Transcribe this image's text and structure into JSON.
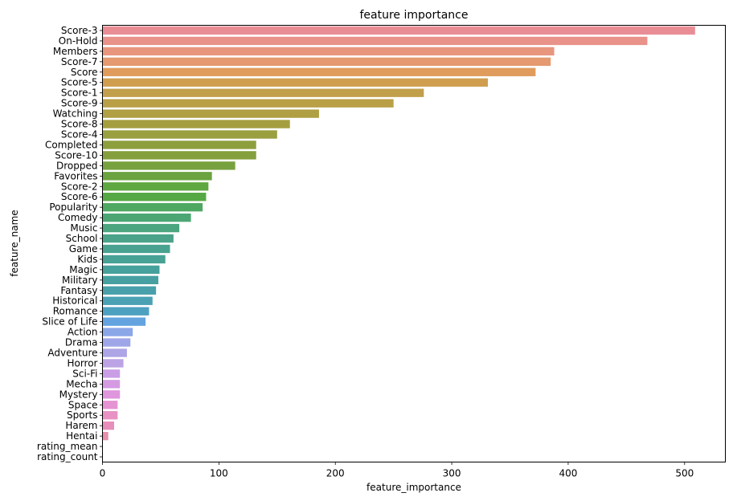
{
  "chart_data": {
    "type": "bar",
    "orientation": "horizontal",
    "title": "feature importance",
    "xlabel": "feature_importance",
    "ylabel": "feature_name",
    "xlim": [
      0,
      535
    ],
    "xticks": [
      0,
      100,
      200,
      300,
      400,
      500
    ],
    "grid": false,
    "categories": [
      "Score-3",
      "On-Hold",
      "Members",
      "Score-7",
      "Score",
      "Score-5",
      "Score-1",
      "Score-9",
      "Watching",
      "Score-8",
      "Score-4",
      "Completed",
      "Score-10",
      "Dropped",
      "Favorites",
      "Score-2",
      "Score-6",
      "Popularity",
      "Comedy",
      "Music",
      "School",
      "Game",
      "Kids",
      "Magic",
      "Military",
      "Fantasy",
      "Historical",
      "Romance",
      "Slice of Life",
      "Action",
      "Drama",
      "Adventure",
      "Horror",
      "Sci-Fi",
      "Mecha",
      "Mystery",
      "Space",
      "Sports",
      "Harem",
      "Hentai",
      "rating_mean",
      "rating_count"
    ],
    "values": [
      509,
      468,
      388,
      385,
      372,
      331,
      276,
      250,
      186,
      161,
      150,
      132,
      132,
      114,
      94,
      91,
      89,
      86,
      76,
      66,
      61,
      58,
      54,
      49,
      48,
      46,
      43,
      40,
      37,
      26,
      24,
      21,
      18,
      15,
      15,
      15,
      13,
      13,
      10,
      5,
      0,
      0
    ],
    "colors": [
      "#e98d95",
      "#e8928a",
      "#e8957e",
      "#e59970",
      "#e09c5d",
      "#cf9e4f",
      "#c29f4b",
      "#b99f46",
      "#b09f43",
      "#a59e40",
      "#9a9f3f",
      "#8d9f3d",
      "#859f3d",
      "#77a13e",
      "#6aa33f",
      "#5fa740",
      "#55a843",
      "#4fa861",
      "#4ca674",
      "#4ba57f",
      "#4aa389",
      "#48a28f",
      "#47a195",
      "#46a09b",
      "#46a0a1",
      "#48a0ab",
      "#4aa1b4",
      "#4da1c0",
      "#63a4e0",
      "#8ba7e8",
      "#9fa6e8",
      "#aea5e7",
      "#bca3e5",
      "#c99ee5",
      "#d59ae2",
      "#df96dd",
      "#e593d2",
      "#e891c5",
      "#e88ebb",
      "#e88fae",
      "#e88fa4",
      "#e88f9c"
    ]
  }
}
